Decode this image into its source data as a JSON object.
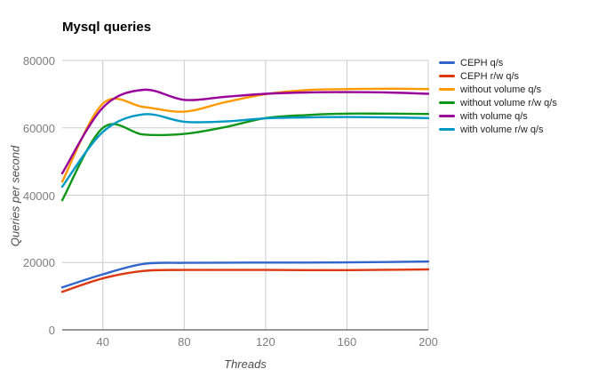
{
  "chart_data": {
    "type": "line",
    "title": "Mysql queries",
    "xlabel": "Threads",
    "ylabel": "Queries per second",
    "curve": "smooth",
    "grid": true,
    "legend_position": "right",
    "xlim": [
      20,
      200
    ],
    "ylim": [
      0,
      80000
    ],
    "x_ticks": [
      {
        "value": 40,
        "label": "40"
      },
      {
        "value": 80,
        "label": "80"
      },
      {
        "value": 120,
        "label": "120"
      },
      {
        "value": 160,
        "label": "160"
      },
      {
        "value": 200,
        "label": "200"
      }
    ],
    "y_ticks": [
      {
        "value": 0,
        "label": "0"
      },
      {
        "value": 20000,
        "label": "20000"
      },
      {
        "value": 40000,
        "label": "40000"
      },
      {
        "value": 60000,
        "label": "60000"
      },
      {
        "value": 80000,
        "label": "80000"
      }
    ],
    "x": [
      20,
      40,
      60,
      80,
      100,
      120,
      140,
      160,
      180,
      200
    ],
    "series": [
      {
        "name": "CEPH q/s",
        "color": "#3366CC",
        "values": [
          12600,
          16500,
          19600,
          19900,
          19950,
          20000,
          20000,
          20050,
          20150,
          20300
        ]
      },
      {
        "name": "CEPH r/w q/s",
        "color": "#DC3912",
        "values": [
          11300,
          15300,
          17500,
          17800,
          17800,
          17800,
          17750,
          17750,
          17850,
          17950
        ]
      },
      {
        "name": "without volume q/s",
        "color": "#FF9900",
        "values": [
          44000,
          67200,
          66200,
          64800,
          67600,
          70000,
          71200,
          71500,
          71600,
          71500
        ]
      },
      {
        "name": "without volume r/w q/s",
        "color": "#109618",
        "values": [
          38500,
          60000,
          58000,
          58200,
          60200,
          62900,
          63800,
          64200,
          64200,
          64100
        ]
      },
      {
        "name": "with volume q/s",
        "color": "#990099",
        "values": [
          46500,
          66000,
          71300,
          68300,
          69200,
          70100,
          70500,
          70600,
          70500,
          70100
        ]
      },
      {
        "name": "with volume r/w q/s",
        "color": "#0099C6",
        "values": [
          42500,
          58800,
          64000,
          61800,
          61900,
          62800,
          63100,
          63200,
          63100,
          62900
        ]
      }
    ],
    "colors": {
      "gridline": "#cccccc",
      "axis_line": "#333333",
      "tick_label": "#7d7d7d",
      "axis_title": "#4d4d4d",
      "legend_text": "#222222",
      "title_text": "#000000"
    }
  }
}
